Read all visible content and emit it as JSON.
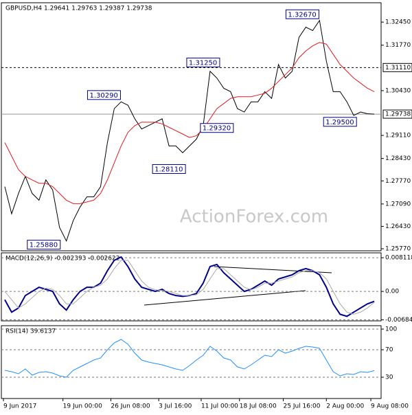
{
  "chart_data": [
    {
      "type": "price",
      "title": "GBPUSD,H4 1.29641 1.29763 1.29387 1.29738",
      "watermark": "ActionForex.com",
      "xlim": [
        -0.5,
        55
      ],
      "xticks": [
        {
          "value": -0.2,
          "label": "9 Jun 2017"
        },
        {
          "value": 8.5,
          "label": "19 Jun 00:00"
        },
        {
          "value": 15.5,
          "label": "26 Jun 08:00"
        },
        {
          "value": 22.5,
          "label": "3 Jul 16:00"
        },
        {
          "value": 28.7,
          "label": "11 Jul 00:00"
        },
        {
          "value": 34.3,
          "label": "18 Jul 08:00"
        },
        {
          "value": 40.7,
          "label": "25 Jul 16:00"
        },
        {
          "value": 47,
          "label": "2 Aug 00:00"
        },
        {
          "value": 53.5,
          "label": "9 Aug 08:00"
        }
      ],
      "ylim": [
        1.2571,
        1.3302
      ],
      "yticks": [
        {
          "value": 1.3245,
          "label": "1.32450"
        },
        {
          "value": 1.3177,
          "label": "1.31770"
        },
        {
          "value": 1.3043,
          "label": "1.30430"
        },
        {
          "value": 1.2911,
          "label": "1.29110"
        },
        {
          "value": 1.2843,
          "label": "1.28430"
        },
        {
          "value": 1.2777,
          "label": "1.27770"
        },
        {
          "value": 1.2709,
          "label": "1.27090"
        },
        {
          "value": 1.2643,
          "label": "1.26430"
        },
        {
          "value": 1.2577,
          "label": "1.25770"
        }
      ],
      "hlines": [
        {
          "value": 1.3111,
          "label": "1.31110",
          "dashed": true,
          "color": "#000000"
        },
        {
          "value": 1.29738,
          "label": "1.29738",
          "dashed": false,
          "color": "#999999"
        }
      ],
      "series": [
        {
          "name": "Close",
          "color": "#000000",
          "values": [
            1.276,
            1.268,
            1.274,
            1.279,
            1.274,
            1.272,
            1.278,
            1.275,
            1.264,
            1.26,
            1.266,
            1.27,
            1.273,
            1.273,
            1.276,
            1.289,
            1.299,
            1.301,
            1.3,
            1.296,
            1.293,
            1.294,
            1.295,
            1.296,
            1.288,
            1.288,
            1.286,
            1.288,
            1.29,
            1.294,
            1.31,
            1.308,
            1.305,
            1.304,
            1.299,
            1.298,
            1.301,
            1.301,
            1.304,
            1.302,
            1.312,
            1.308,
            1.31,
            1.32,
            1.323,
            1.322,
            1.325,
            1.313,
            1.304,
            1.304,
            1.301,
            1.297,
            1.298,
            1.2975,
            1.29738
          ]
        },
        {
          "name": "MA",
          "color": "#e41a1c",
          "values": [
            1.289,
            1.285,
            1.281,
            1.279,
            1.278,
            1.277,
            1.277,
            1.276,
            1.274,
            1.272,
            1.271,
            1.271,
            1.2715,
            1.272,
            1.274,
            1.278,
            1.283,
            1.288,
            1.292,
            1.294,
            1.295,
            1.295,
            1.295,
            1.2945,
            1.2935,
            1.2925,
            1.2915,
            1.2905,
            1.291,
            1.293,
            1.296,
            1.299,
            1.3005,
            1.302,
            1.3025,
            1.3025,
            1.3025,
            1.303,
            1.3035,
            1.305,
            1.307,
            1.309,
            1.311,
            1.314,
            1.316,
            1.3175,
            1.3185,
            1.318,
            1.315,
            1.312,
            1.31,
            1.308,
            1.3065,
            1.305,
            1.304
          ]
        }
      ],
      "annotations": [
        {
          "label": "1.32670",
          "value": 1.3267,
          "x": 43.5
        },
        {
          "label": "1.31250",
          "value": 1.3125,
          "x": 29
        },
        {
          "label": "1.30290",
          "value": 1.3029,
          "x": 14.5
        },
        {
          "label": "1.29320",
          "value": 1.2932,
          "x": 31
        },
        {
          "label": "1.28110",
          "value": 1.2811,
          "x": 24
        },
        {
          "label": "1.25880",
          "value": 1.2588,
          "x": 5.7
        },
        {
          "label": "1.29500",
          "value": 1.295,
          "x": 49
        }
      ]
    },
    {
      "type": "macd",
      "title": "MACD(12,26,9) -0.002393 -0.002622",
      "xlim": [
        -0.5,
        55
      ],
      "ylim": [
        -0.0071,
        0.0093
      ],
      "yticks": [
        0.008118,
        {
          "value": 0,
          "label": "0.00"
        },
        -0.006844
      ],
      "series": [
        {
          "name": "MACD",
          "color": "#00008b",
          "values": [
            -0.002,
            -0.005,
            -0.004,
            -0.001,
            0,
            0.001,
            0.0005,
            0,
            -0.003,
            -0.0045,
            -0.002,
            0,
            0.001,
            0.001,
            0.002,
            0.005,
            0.0075,
            0.0083,
            0.006,
            0.003,
            0.001,
            0.0005,
            0,
            0.0005,
            -0.0005,
            -0.001,
            -0.0012,
            -0.001,
            -0.0005,
            0.002,
            0.006,
            0.0065,
            0.0045,
            0.003,
            0.0015,
            0,
            0.0005,
            0.0015,
            0.0025,
            0.0015,
            0.003,
            0.0035,
            0.004,
            0.005,
            0.0055,
            0.005,
            0.004,
            0.001,
            -0.003,
            -0.0055,
            -0.006,
            -0.005,
            -0.004,
            -0.003,
            -0.002393
          ]
        },
        {
          "name": "Signal",
          "color": "#aaaaaa",
          "values": [
            0,
            -0.002,
            -0.004,
            -0.003,
            -0.0015,
            0,
            0.0008,
            0.0005,
            -0.001,
            -0.003,
            -0.003,
            -0.0015,
            0,
            0.001,
            0.0015,
            0.003,
            0.0055,
            0.0075,
            0.0075,
            0.005,
            0.0025,
            0.001,
            0.0004,
            0.0002,
            0,
            -0.0005,
            -0.001,
            -0.001,
            -0.0008,
            0.0005,
            0.003,
            0.0055,
            0.0055,
            0.004,
            0.0025,
            0.001,
            0.0004,
            0.001,
            0.002,
            0.002,
            0.0025,
            0.003,
            0.0035,
            0.0045,
            0.005,
            0.005,
            0.0045,
            0.003,
            0,
            -0.003,
            -0.005,
            -0.0055,
            -0.005,
            -0.004,
            -0.002622
          ]
        }
      ]
    },
    {
      "type": "rsi",
      "title": "RSI(14) 39.6137",
      "xlim": [
        -0.5,
        55
      ],
      "ylim": [
        -1,
        105
      ],
      "yticks": [
        100,
        70,
        30
      ],
      "series": [
        {
          "name": "RSI",
          "color": "#1e90ff",
          "values": [
            40,
            38,
            35,
            42,
            33,
            37,
            38,
            36,
            32,
            30,
            40,
            45,
            50,
            55,
            58,
            70,
            80,
            85,
            78,
            65,
            55,
            52,
            50,
            48,
            45,
            42,
            40,
            47,
            55,
            62,
            75,
            68,
            58,
            55,
            45,
            42,
            48,
            55,
            62,
            60,
            70,
            65,
            68,
            72,
            75,
            74,
            72,
            55,
            38,
            32,
            35,
            34,
            38,
            37,
            39.6137
          ]
        }
      ]
    }
  ]
}
